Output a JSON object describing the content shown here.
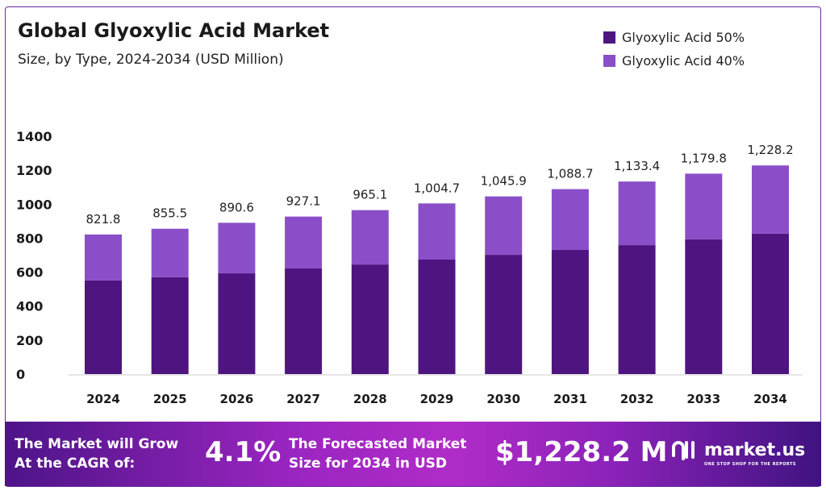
{
  "chart_data": {
    "type": "bar",
    "stacked": true,
    "title": "Global Glyoxylic Acid Market",
    "subtitle": "Size, by Type, 2024-2034 (USD Million)",
    "categories": [
      "2024",
      "2025",
      "2026",
      "2027",
      "2028",
      "2029",
      "2030",
      "2031",
      "2032",
      "2033",
      "2034"
    ],
    "series": [
      {
        "name": "Glyoxylic Acid 50%",
        "color": "#4e1580",
        "values": [
          551,
          570,
          593,
          622,
          645,
          674,
          702,
          731,
          759,
          793,
          826
        ]
      },
      {
        "name": "Glyoxylic Acid 40%",
        "color": "#8a4fc8",
        "values": [
          270.8,
          285.5,
          297.6,
          305.1,
          320.1,
          330.7,
          343.9,
          357.7,
          374.4,
          386.8,
          402.2
        ]
      }
    ],
    "totals": [
      "821.8",
      "855.5",
      "890.6",
      "927.1",
      "965.1",
      "1,004.7",
      "1,045.9",
      "1,088.7",
      "1,133.4",
      "1,179.8",
      "1,228.2"
    ],
    "yticks": [
      "0",
      "200",
      "400",
      "600",
      "800",
      "1000",
      "1200",
      "1400"
    ],
    "ylim": [
      0,
      1400
    ],
    "grid": false,
    "legend": "top-right"
  },
  "footer": {
    "cagr_text_1": "The Market will Grow",
    "cagr_text_2": "At the CAGR of:",
    "cagr_value": "4.1%",
    "forecast_text_1": "The Forecasted Market",
    "forecast_text_2": "Size for 2034 in USD",
    "forecast_value": "$1,228.2 M",
    "logo_text": "market.us",
    "logo_tagline": "ONE STOP SHOP FOR THE REPORTS"
  }
}
